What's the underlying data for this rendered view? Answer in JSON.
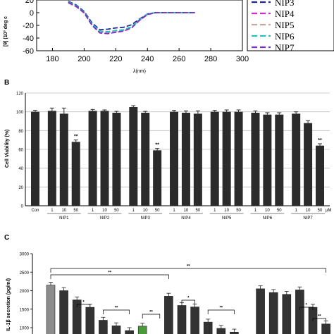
{
  "chart_data": [
    {
      "panel": "A",
      "type": "line",
      "xlabel": "λ(nm)",
      "ylabel": "[θ] (10³ deg c",
      "xlim": [
        170,
        300
      ],
      "ylim": [
        -60,
        20
      ],
      "x_ticks": [
        "180",
        "200",
        "220",
        "240",
        "260",
        "280",
        "300"
      ],
      "y_ticks": [
        "20",
        "0",
        "-20",
        "-40",
        "-60"
      ],
      "legend": [
        "NIP3",
        "NIP4",
        "NIP5",
        "NIP6",
        "NIP7"
      ],
      "series": [
        {
          "name": "NIP3",
          "color": "#1f2a8c",
          "dash": "7,3",
          "x": [
            190,
            195,
            200,
            205,
            210,
            215,
            220,
            225,
            230,
            235,
            240,
            245,
            250,
            260,
            270
          ],
          "y": [
            18,
            12,
            2,
            -16,
            -27,
            -26,
            -24,
            -23,
            -19,
            -10,
            -2,
            0,
            0,
            0,
            0
          ]
        },
        {
          "name": "NIP4",
          "color": "#d12ad1",
          "dash": "7,3",
          "x": [
            190,
            195,
            200,
            205,
            210,
            215,
            220,
            225,
            230,
            235,
            240,
            245,
            250,
            260,
            270
          ],
          "y": [
            16,
            10,
            0,
            -19,
            -30,
            -31,
            -29,
            -28,
            -23,
            -12,
            -3,
            0,
            0,
            0,
            0
          ]
        },
        {
          "name": "NIP5",
          "color": "#c9a8a8",
          "dash": "7,3",
          "x": [
            190,
            195,
            200,
            205,
            210,
            215,
            220,
            225,
            230,
            235,
            240,
            245,
            250,
            260,
            270
          ],
          "y": [
            15,
            9,
            -1,
            -20,
            -31,
            -32,
            -30,
            -28,
            -23,
            -12,
            -3,
            0,
            0,
            0,
            0
          ]
        },
        {
          "name": "NIP6",
          "color": "#22c3c3",
          "dash": "7,3",
          "x": [
            190,
            195,
            200,
            205,
            210,
            215,
            220,
            225,
            230,
            235,
            240,
            245,
            250,
            260,
            270
          ],
          "y": [
            17,
            11,
            1,
            -18,
            -29,
            -30,
            -28,
            -27,
            -22,
            -11,
            -2,
            0,
            0,
            0,
            0
          ]
        },
        {
          "name": "NIP7",
          "color": "#7a2ec2",
          "dash": "7,3",
          "x": [
            190,
            195,
            200,
            205,
            210,
            215,
            220,
            225,
            230,
            235,
            240,
            245,
            250,
            260,
            270
          ],
          "y": [
            16,
            10,
            0,
            -20,
            -32,
            -33,
            -31,
            -29,
            -24,
            -12,
            -3,
            0,
            0,
            0,
            0
          ]
        }
      ]
    },
    {
      "panel": "B",
      "type": "bar",
      "ylabel": "Cell Viability (%)",
      "ylim": [
        0,
        120
      ],
      "y_ticks": [
        "0",
        "20",
        "40",
        "60",
        "80",
        "100",
        "120"
      ],
      "unit": "μM",
      "categories": [
        "Con",
        "1",
        "10",
        "50",
        "1",
        "10",
        "50",
        "1",
        "10",
        "50",
        "1",
        "10",
        "50",
        "1",
        "10",
        "50",
        "1",
        "10",
        "50",
        "1",
        "10",
        "50"
      ],
      "groups": [
        "NIP1",
        "NIP2",
        "NIP3",
        "NIP4",
        "NIP5",
        "NIP6",
        "NIP7"
      ],
      "values": [
        100,
        101,
        98,
        68,
        101,
        101,
        99,
        105,
        99,
        59,
        100,
        99,
        98,
        100,
        100,
        100,
        99,
        97,
        97,
        98,
        88,
        64
      ],
      "errors": [
        1.5,
        3,
        6,
        2,
        1.5,
        1,
        1.5,
        1.5,
        1.5,
        2,
        1.5,
        2,
        3,
        1.5,
        2,
        2,
        2,
        2,
        2,
        2,
        2.5,
        2
      ],
      "annotations": [
        "**",
        "**",
        "**"
      ]
    },
    {
      "panel": "C",
      "type": "bar",
      "ylabel": "IL-1β secretion (pg/ml)",
      "ylim": [
        0,
        3000
      ],
      "y_ticks": [
        "1000",
        "1500",
        "2000",
        "2500",
        "3000"
      ],
      "values": [
        2150,
        2000,
        1750,
        1550,
        1200,
        1050,
        920,
        1040,
        0,
        1850,
        1600,
        1560,
        1150,
        980,
        880,
        0,
        2050,
        1950,
        1900,
        2020,
        1550,
        1100
      ],
      "colors": [
        "#8c8c8c",
        "#333333",
        "#333333",
        "#333333",
        "#333333",
        "#333333",
        "#333333",
        "#4a9a3a",
        "#ffffff",
        "#333333",
        "#333333",
        "#333333",
        "#333333",
        "#333333",
        "#333333",
        "#ffffff",
        "#333333",
        "#333333",
        "#333333",
        "#333333",
        "#333333",
        "#333333"
      ],
      "annotations": [
        "**",
        "**",
        "*",
        "**",
        "**",
        "*",
        "**",
        "*",
        "**"
      ]
    }
  ]
}
